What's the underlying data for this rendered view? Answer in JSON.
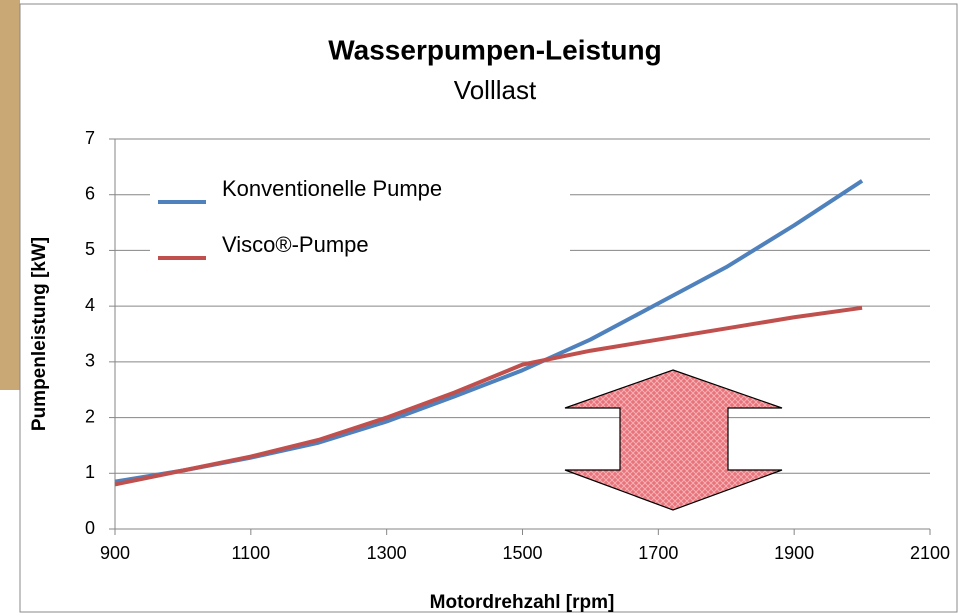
{
  "chart_data": {
    "type": "line",
    "title": "Wasserpumpen-Leistung",
    "subtitle": "Volllast",
    "x_label": "Motordrehzahl [rpm]",
    "y_label": "Pumpenleistung [kW]",
    "x": [
      900,
      1000,
      1100,
      1200,
      1300,
      1400,
      1500,
      1600,
      1700,
      1800,
      1900,
      2000
    ],
    "series": [
      {
        "name": "Konventionelle Pumpe",
        "color": "#4f81bd",
        "values": [
          0.85,
          1.05,
          1.28,
          1.55,
          1.93,
          2.38,
          2.85,
          3.4,
          4.05,
          4.7,
          5.45,
          6.25
        ]
      },
      {
        "name": "Visco®-Pumpe",
        "color": "#c0504d",
        "values": [
          0.8,
          1.05,
          1.3,
          1.6,
          2.0,
          2.45,
          2.95,
          3.2,
          3.4,
          3.6,
          3.8,
          3.97
        ]
      }
    ],
    "xlim": [
      900,
      2100
    ],
    "xticks": [
      900,
      1100,
      1300,
      1500,
      1700,
      1900,
      2100
    ],
    "ylim": [
      0,
      7
    ],
    "yticks": [
      0,
      1,
      2,
      3,
      4,
      5,
      6,
      7
    ],
    "grid": true,
    "legend": "upper left"
  }
}
